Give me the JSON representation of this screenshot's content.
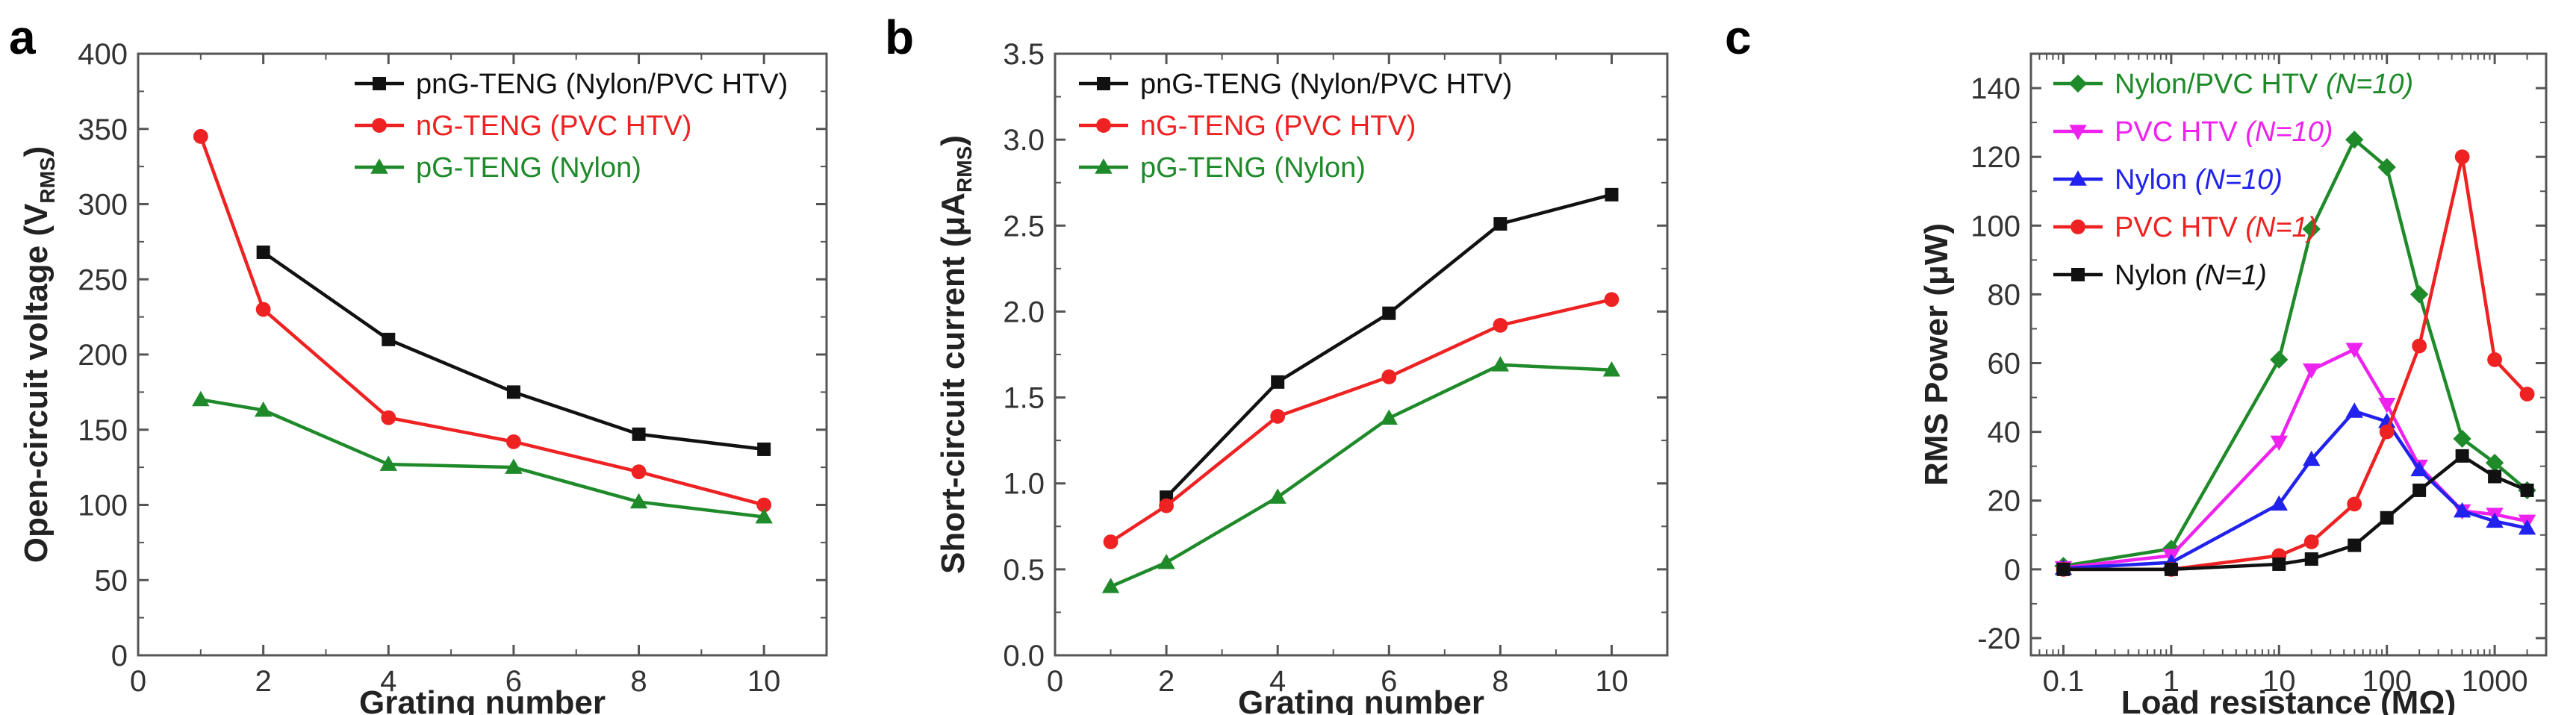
{
  "chart_data": [
    {
      "panel": "a",
      "type": "line",
      "xlabel": "Grating number",
      "ylabel": "Open-circuit voltage (V",
      "ylabel_sub": "RMS",
      "ylabel_end": ")",
      "xlim": [
        0,
        11
      ],
      "ylim": [
        0,
        400
      ],
      "xticks": [
        0,
        2,
        4,
        6,
        8,
        10
      ],
      "yticks": [
        0,
        50,
        100,
        150,
        200,
        250,
        300,
        350,
        400
      ],
      "series": [
        {
          "name": "pnG-TENG (Nylon/PVC HTV)",
          "color": "#111111",
          "marker": "square",
          "x": [
            2,
            4,
            6,
            8,
            10
          ],
          "y": [
            268,
            210,
            175,
            147,
            137
          ]
        },
        {
          "name": "nG-TENG (PVC HTV)",
          "color": "#ee2222",
          "marker": "circle",
          "x": [
            1,
            2,
            4,
            6,
            8,
            10
          ],
          "y": [
            345,
            230,
            158,
            142,
            122,
            100
          ]
        },
        {
          "name": "pG-TENG (Nylon)",
          "color": "#1f8a2a",
          "marker": "triangle",
          "x": [
            1,
            2,
            4,
            6,
            8,
            10
          ],
          "y": [
            170,
            163,
            127,
            125,
            102,
            92
          ]
        }
      ]
    },
    {
      "panel": "b",
      "type": "line",
      "xlabel": "Grating number",
      "ylabel": "Short-circuit current (μA",
      "ylabel_sub": "RMS",
      "ylabel_end": ")",
      "xlim": [
        0,
        11
      ],
      "ylim": [
        0,
        3.5
      ],
      "xticks": [
        0,
        2,
        4,
        6,
        8,
        10
      ],
      "yticks": [
        0.0,
        0.5,
        1.0,
        1.5,
        2.0,
        2.5,
        3.0,
        3.5
      ],
      "series": [
        {
          "name": "pnG-TENG (Nylon/PVC HTV)",
          "color": "#111111",
          "marker": "square",
          "x": [
            2,
            4,
            6,
            8,
            10
          ],
          "y": [
            0.92,
            1.59,
            1.99,
            2.51,
            2.68
          ]
        },
        {
          "name": "nG-TENG (PVC HTV)",
          "color": "#ee2222",
          "marker": "circle",
          "x": [
            1,
            2,
            4,
            6,
            8,
            10
          ],
          "y": [
            0.66,
            0.87,
            1.39,
            1.62,
            1.92,
            2.07
          ]
        },
        {
          "name": "pG-TENG (Nylon)",
          "color": "#1f8a2a",
          "marker": "triangle",
          "x": [
            1,
            2,
            4,
            6,
            8,
            10
          ],
          "y": [
            0.4,
            0.54,
            0.92,
            1.38,
            1.69,
            1.66
          ]
        }
      ]
    },
    {
      "panel": "c",
      "type": "line",
      "xscale": "log",
      "xlabel": "Load resistance (MΩ)",
      "ylabel": "RMS Power (μW)",
      "xlim": [
        0.05,
        3000
      ],
      "ylim": [
        -25,
        150
      ],
      "xticks": [
        0.1,
        1,
        10,
        100,
        1000
      ],
      "xticklabels": [
        "0.1",
        "1",
        "10",
        "100",
        "1000"
      ],
      "yticks": [
        -20,
        0,
        20,
        40,
        60,
        80,
        100,
        120,
        140
      ],
      "series": [
        {
          "name": "Nylon/PVC HTV",
          "suffix": "(N=10)",
          "color": "#1f8a2a",
          "marker": "diamond",
          "x": [
            0.1,
            1,
            10,
            20,
            50,
            100,
            200,
            500,
            1000,
            2000
          ],
          "y": [
            1,
            6,
            61,
            99,
            125,
            117,
            80,
            38,
            31,
            23
          ]
        },
        {
          "name": "PVC HTV",
          "suffix": "(N=10)",
          "color": "#ee22ee",
          "marker": "triangle-down",
          "x": [
            0.1,
            1,
            10,
            20,
            50,
            100,
            200,
            500,
            1000,
            2000
          ],
          "y": [
            0.5,
            4,
            37,
            58,
            64,
            48,
            30,
            17,
            16,
            14
          ]
        },
        {
          "name": "Nylon",
          "suffix": "(N=10)",
          "color": "#2222ee",
          "marker": "triangle",
          "x": [
            0.1,
            1,
            10,
            20,
            50,
            100,
            200,
            500,
            1000,
            2000
          ],
          "y": [
            0.3,
            2,
            19,
            32,
            46,
            43,
            29,
            17,
            14,
            12
          ]
        },
        {
          "name": "PVC HTV",
          "suffix": "(N=1)",
          "color": "#ee2222",
          "marker": "circle",
          "x": [
            0.1,
            1,
            10,
            20,
            50,
            100,
            200,
            500,
            1000,
            2000
          ],
          "y": [
            0,
            0,
            4,
            8,
            19,
            40,
            65,
            120,
            61,
            51
          ]
        },
        {
          "name": "Nylon",
          "suffix": "(N=1)",
          "color": "#111111",
          "marker": "square",
          "x": [
            0.1,
            1,
            10,
            20,
            50,
            100,
            200,
            500,
            1000,
            2000
          ],
          "y": [
            0,
            0,
            1.5,
            3,
            7,
            15,
            23,
            33,
            27,
            23
          ]
        }
      ]
    }
  ]
}
